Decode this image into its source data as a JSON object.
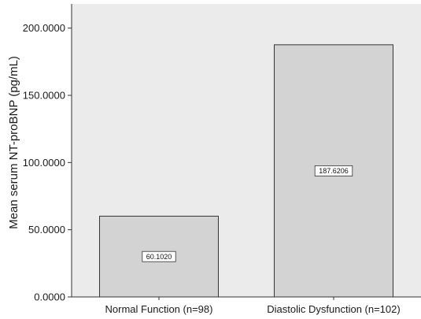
{
  "chart_data": {
    "type": "bar",
    "title": "",
    "xlabel": "",
    "ylabel": "Mean serum NT-proBNP (pg/mL)",
    "categories": [
      "Normal Function (n=98)",
      "Diastolic Dysfunction (n=102)"
    ],
    "values": [
      60.102,
      187.6206
    ],
    "data_labels": [
      "60.1020",
      "187.6206"
    ],
    "y_ticks": [
      0,
      50,
      100,
      150,
      200
    ],
    "y_tick_labels": [
      "0.0000",
      "50.0000",
      "100.0000",
      "150.0000",
      "200.0000"
    ],
    "ylim": [
      0,
      218
    ],
    "grid": false,
    "legend": "none",
    "colors": {
      "plot_background": "#ebebeb",
      "bar_fill": "#d3d3d3",
      "bar_stroke": "#333333",
      "axis": "#333333",
      "label_box_fill": "#ffffff"
    }
  }
}
